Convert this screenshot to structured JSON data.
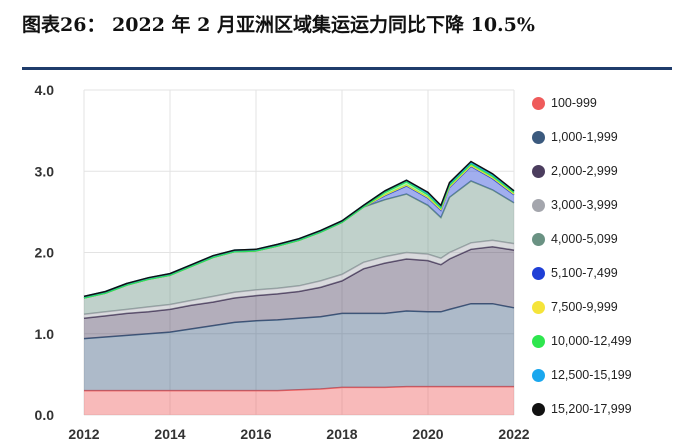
{
  "header": {
    "title": "图表26：  2022 年 2 月亚洲区域集运运力同比下降 10.5%"
  },
  "chart_data": {
    "type": "area",
    "stacked": true,
    "title": "",
    "xlabel": "",
    "ylabel": "",
    "xlim": [
      2012,
      2022
    ],
    "ylim": [
      0,
      4.0
    ],
    "x_ticks": [
      "2012",
      "2014",
      "2016",
      "2018",
      "2020",
      "2022"
    ],
    "y_ticks": [
      "0.0",
      "1.0",
      "2.0",
      "3.0",
      "4.0"
    ],
    "grid": true,
    "legend_position": "right",
    "x": [
      2012,
      2012.5,
      2013,
      2013.5,
      2014,
      2014.5,
      2015,
      2015.5,
      2016,
      2016.5,
      2017,
      2017.5,
      2018,
      2018.5,
      2019,
      2019.5,
      2020,
      2020.3,
      2020.5,
      2021,
      2021.5,
      2022
    ],
    "series": [
      {
        "name": "100-999",
        "color": "#ef5b5b",
        "values": [
          0.3,
          0.3,
          0.3,
          0.3,
          0.3,
          0.3,
          0.3,
          0.3,
          0.3,
          0.3,
          0.31,
          0.32,
          0.34,
          0.34,
          0.34,
          0.35,
          0.35,
          0.35,
          0.35,
          0.35,
          0.35,
          0.35
        ]
      },
      {
        "name": "1,000-1,999",
        "color": "#3b5a7e",
        "values": [
          0.64,
          0.66,
          0.68,
          0.7,
          0.72,
          0.76,
          0.8,
          0.84,
          0.86,
          0.87,
          0.88,
          0.89,
          0.91,
          0.91,
          0.91,
          0.93,
          0.92,
          0.92,
          0.95,
          1.02,
          1.02,
          0.97
        ]
      },
      {
        "name": "2,000-2,999",
        "color": "#4b3d5e",
        "values": [
          0.25,
          0.26,
          0.27,
          0.27,
          0.28,
          0.29,
          0.29,
          0.3,
          0.31,
          0.32,
          0.33,
          0.36,
          0.4,
          0.55,
          0.62,
          0.64,
          0.63,
          0.58,
          0.62,
          0.67,
          0.7,
          0.71
        ]
      },
      {
        "name": "3,000-3,999",
        "color": "#a4a6ad",
        "values": [
          0.05,
          0.05,
          0.05,
          0.06,
          0.06,
          0.06,
          0.07,
          0.07,
          0.07,
          0.07,
          0.07,
          0.08,
          0.08,
          0.08,
          0.08,
          0.08,
          0.08,
          0.08,
          0.08,
          0.08,
          0.08,
          0.08
        ]
      },
      {
        "name": "4,000-5,099",
        "color": "#6a9283",
        "values": [
          0.2,
          0.23,
          0.3,
          0.34,
          0.36,
          0.42,
          0.48,
          0.5,
          0.48,
          0.52,
          0.56,
          0.6,
          0.64,
          0.68,
          0.7,
          0.72,
          0.6,
          0.5,
          0.68,
          0.76,
          0.62,
          0.5
        ]
      },
      {
        "name": "5,100-7,499",
        "color": "#1f3fd6",
        "values": [
          0.0,
          0.0,
          0.0,
          0.0,
          0.0,
          0.0,
          0.0,
          0.0,
          0.0,
          0.0,
          0.0,
          0.0,
          0.0,
          0.0,
          0.05,
          0.1,
          0.09,
          0.09,
          0.12,
          0.18,
          0.14,
          0.1
        ]
      },
      {
        "name": "7,500-9,999",
        "color": "#f5e43a",
        "values": [
          0,
          0,
          0,
          0,
          0,
          0,
          0,
          0,
          0,
          0,
          0,
          0,
          0,
          0,
          0.01,
          0.01,
          0.01,
          0.01,
          0.01,
          0.01,
          0.01,
          0.01
        ]
      },
      {
        "name": "10,000-12,499",
        "color": "#2ee64e",
        "values": [
          0,
          0,
          0,
          0,
          0,
          0,
          0,
          0,
          0,
          0,
          0,
          0,
          0,
          0,
          0.03,
          0.04,
          0.03,
          0.02,
          0.02,
          0.02,
          0.02,
          0.02
        ]
      },
      {
        "name": "12,500-15,199",
        "color": "#1aa7ee",
        "values": [
          0.02,
          0.02,
          0.02,
          0.02,
          0.02,
          0.02,
          0.02,
          0.02,
          0.02,
          0.02,
          0.02,
          0.02,
          0.02,
          0.02,
          0.02,
          0.02,
          0.02,
          0.02,
          0.02,
          0.02,
          0.02,
          0.02
        ]
      },
      {
        "name": "15,200-17,999",
        "color": "#111111",
        "values": [
          0,
          0,
          0,
          0,
          0,
          0,
          0,
          0,
          0,
          0,
          0,
          0,
          0,
          0,
          0,
          0,
          0.01,
          0.01,
          0.01,
          0.01,
          0.01,
          0.0
        ]
      }
    ]
  }
}
